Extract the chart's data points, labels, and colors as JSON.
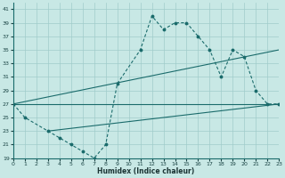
{
  "bg_color": "#c8e8e5",
  "grid_color": "#a0ccca",
  "line_color": "#1a6b6b",
  "xlabel": "Humidex (Indice chaleur)",
  "xlim": [
    0,
    23
  ],
  "ylim": [
    19,
    42
  ],
  "yticks": [
    19,
    21,
    23,
    25,
    27,
    29,
    31,
    33,
    35,
    37,
    39,
    41
  ],
  "xticks": [
    0,
    1,
    2,
    3,
    4,
    5,
    6,
    7,
    8,
    9,
    10,
    11,
    12,
    13,
    14,
    15,
    16,
    17,
    18,
    19,
    20,
    21,
    22,
    23
  ],
  "curve_x": [
    0,
    1,
    3,
    4,
    5,
    6,
    7,
    8,
    9,
    11,
    12,
    13,
    14,
    15,
    16,
    17,
    18,
    19,
    20,
    21,
    22,
    23
  ],
  "curve_y": [
    27,
    25,
    23,
    22,
    21,
    20,
    19,
    21,
    30,
    35,
    40,
    38,
    39,
    39,
    37,
    35,
    31,
    35,
    34,
    29,
    27,
    27
  ],
  "trend1_x": [
    0,
    23
  ],
  "trend1_y": [
    27,
    27
  ],
  "trend2_x": [
    0,
    23
  ],
  "trend2_y": [
    27,
    35
  ],
  "trend3_x": [
    3,
    23
  ],
  "trend3_y": [
    23,
    27
  ]
}
